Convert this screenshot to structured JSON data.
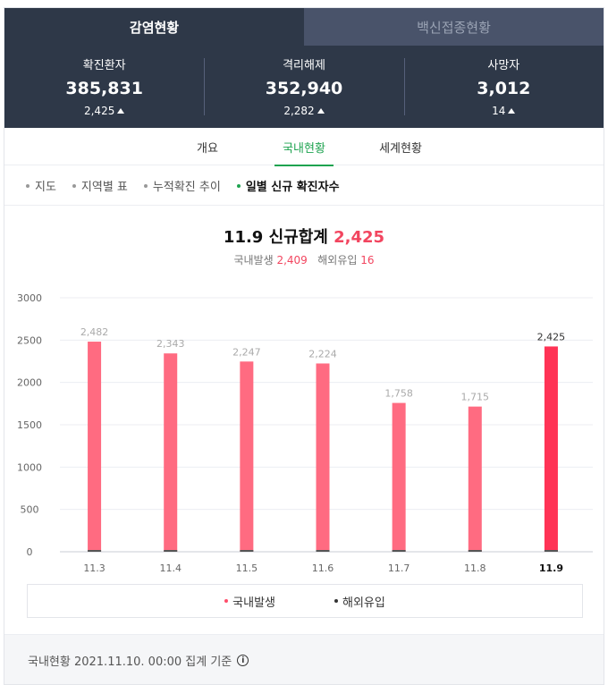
{
  "top_tabs": [
    {
      "label": "감염현황",
      "active": true
    },
    {
      "label": "백신접종현황",
      "active": false
    }
  ],
  "stats": [
    {
      "label": "확진환자",
      "value": "385,831",
      "delta": "2,425"
    },
    {
      "label": "격리해제",
      "value": "352,940",
      "delta": "2,282"
    },
    {
      "label": "사망자",
      "value": "3,012",
      "delta": "14"
    }
  ],
  "sub_tabs": [
    {
      "label": "개요",
      "active": false
    },
    {
      "label": "국내현황",
      "active": true
    },
    {
      "label": "세계현황",
      "active": false
    }
  ],
  "chips": [
    {
      "label": "지도",
      "active": false
    },
    {
      "label": "지역별 표",
      "active": false
    },
    {
      "label": "누적확진 추이",
      "active": false
    },
    {
      "label": "일별 신규 확진자수",
      "active": true
    }
  ],
  "summary": {
    "title_prefix": "11.9 신규합계",
    "total": "2,425",
    "domestic_label": "국내발생",
    "domestic_value": "2,409",
    "overseas_label": "해외유입",
    "overseas_value": "16"
  },
  "colors": {
    "header_bg": "#2e3848",
    "accent_green": "#1ea350",
    "bar_domestic": "#ff6b81",
    "bar_highlight": "#ff3355",
    "bar_overseas": "#555555",
    "total_red": "#f2455f"
  },
  "chart_data": {
    "type": "bar",
    "stacked": true,
    "categories": [
      "11.3",
      "11.4",
      "11.5",
      "11.6",
      "11.7",
      "11.8",
      "11.9"
    ],
    "totals": [
      2482,
      2343,
      2247,
      2224,
      1758,
      1715,
      2425
    ],
    "total_labels": [
      "2,482",
      "2,343",
      "2,247",
      "2,224",
      "1,758",
      "1,715",
      "2,425"
    ],
    "series": [
      {
        "name": "국내발생"
      },
      {
        "name": "해외유입"
      }
    ],
    "highlight_index": 6,
    "yticks": [
      0,
      500,
      1000,
      1500,
      2000,
      2500,
      3000
    ],
    "ylim": [
      0,
      3000
    ],
    "grid": true
  },
  "legend": {
    "domestic": "국내발생",
    "overseas": "해외유입"
  },
  "footer": {
    "text": "국내현황 2021.11.10. 00:00 집계 기준",
    "info_icon": "i"
  }
}
